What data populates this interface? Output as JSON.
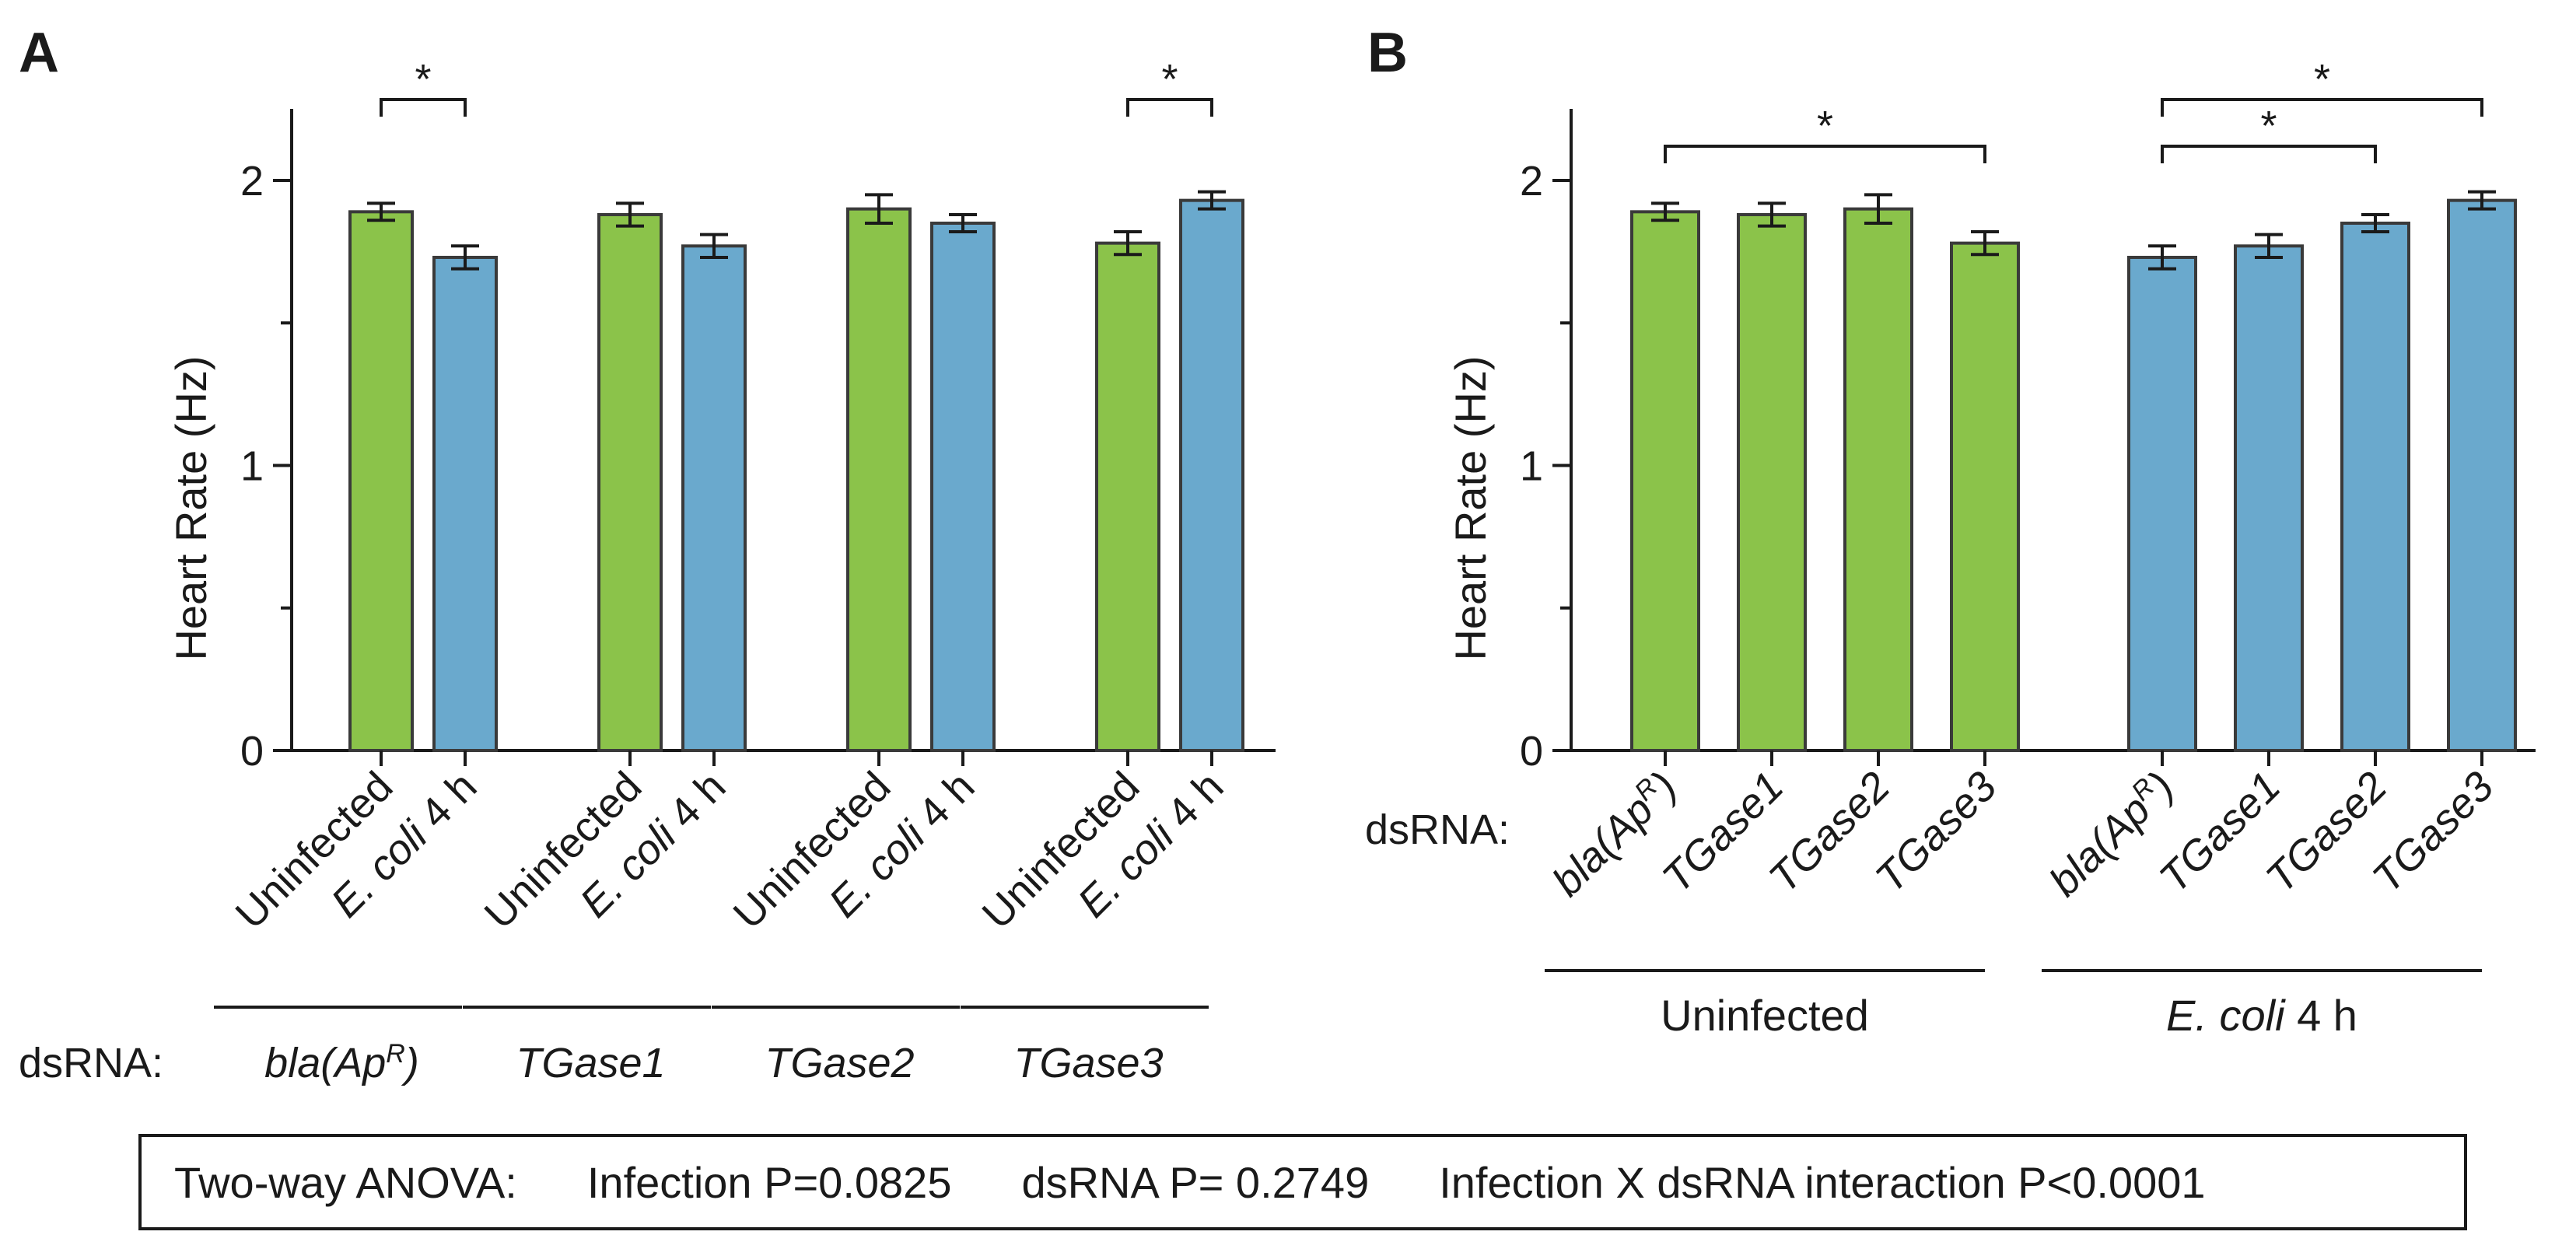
{
  "colors": {
    "uninfected": "#8BC34A",
    "infected": "#6AA9CD",
    "stroke": "#3a3a3a",
    "text": "#1a1a1a"
  },
  "dsrna_label": "dsRNA:",
  "chart_data": [
    {
      "panel": "A",
      "type": "bar",
      "ylabel": "Heart Rate (Hz)",
      "ylim": [
        0,
        2.25
      ],
      "yticks": [
        0,
        1,
        2
      ],
      "minor_yticks": [
        0.5,
        1.5
      ],
      "bars": [
        {
          "label": "Uninfected",
          "italic_part": "",
          "condition": "uninfected",
          "dsrna": "bla(ApR)",
          "value": 1.89,
          "err": 0.03
        },
        {
          "label": " 4 h",
          "italic_part": "E. coli",
          "condition": "infected",
          "dsrna": "bla(ApR)",
          "value": 1.73,
          "err": 0.04
        },
        {
          "label": "Uninfected",
          "italic_part": "",
          "condition": "uninfected",
          "dsrna": "TGase1",
          "value": 1.88,
          "err": 0.04
        },
        {
          "label": " 4 h",
          "italic_part": "E. coli",
          "condition": "infected",
          "dsrna": "TGase1",
          "value": 1.77,
          "err": 0.04
        },
        {
          "label": "Uninfected",
          "italic_part": "",
          "condition": "uninfected",
          "dsrna": "TGase2",
          "value": 1.9,
          "err": 0.05
        },
        {
          "label": " 4 h",
          "italic_part": "E. coli",
          "condition": "infected",
          "dsrna": "TGase2",
          "value": 1.85,
          "err": 0.03
        },
        {
          "label": "Uninfected",
          "italic_part": "",
          "condition": "uninfected",
          "dsrna": "TGase3",
          "value": 1.78,
          "err": 0.04
        },
        {
          "label": " 4 h",
          "italic_part": "E. coli",
          "condition": "infected",
          "dsrna": "TGase3",
          "value": 1.93,
          "err": 0.03
        }
      ],
      "groups": [
        {
          "label": "bla(Ap",
          "sup": "R",
          "close": ")",
          "bars": [
            0,
            1
          ]
        },
        {
          "label": "TGase1",
          "sup": "",
          "close": "",
          "bars": [
            2,
            3
          ]
        },
        {
          "label": "TGase2",
          "sup": "",
          "close": "",
          "bars": [
            4,
            5
          ]
        },
        {
          "label": "TGase3",
          "sup": "",
          "close": "",
          "bars": [
            6,
            7
          ]
        }
      ],
      "significance": [
        {
          "from": 0,
          "to": 1,
          "label": "*"
        },
        {
          "from": 6,
          "to": 7,
          "label": "*"
        }
      ]
    },
    {
      "panel": "B",
      "type": "bar",
      "ylabel": "Heart Rate (Hz)",
      "ylim": [
        0,
        2.25
      ],
      "yticks": [
        0,
        1,
        2
      ],
      "minor_yticks": [
        0.5,
        1.5
      ],
      "bars": [
        {
          "label": "bla(Ap",
          "sup": "R",
          "close": ")",
          "condition": "uninfected",
          "value": 1.89,
          "err": 0.03
        },
        {
          "label": "TGase1",
          "sup": "",
          "close": "",
          "condition": "uninfected",
          "value": 1.88,
          "err": 0.04
        },
        {
          "label": "TGase2",
          "sup": "",
          "close": "",
          "condition": "uninfected",
          "value": 1.9,
          "err": 0.05
        },
        {
          "label": "TGase3",
          "sup": "",
          "close": "",
          "condition": "uninfected",
          "value": 1.78,
          "err": 0.04
        },
        {
          "label": "bla(Ap",
          "sup": "R",
          "close": ")",
          "condition": "infected",
          "value": 1.73,
          "err": 0.04
        },
        {
          "label": "TGase1",
          "sup": "",
          "close": "",
          "condition": "infected",
          "value": 1.77,
          "err": 0.04
        },
        {
          "label": "TGase2",
          "sup": "",
          "close": "",
          "condition": "infected",
          "value": 1.85,
          "err": 0.03
        },
        {
          "label": "TGase3",
          "sup": "",
          "close": "",
          "condition": "infected",
          "value": 1.93,
          "err": 0.03
        }
      ],
      "groups": [
        {
          "label": "Uninfected",
          "italic_part": "",
          "bars": [
            0,
            1,
            2,
            3
          ]
        },
        {
          "label": " 4 h",
          "italic_part": "E. coli",
          "bars": [
            4,
            5,
            6,
            7
          ]
        }
      ],
      "significance": [
        {
          "from": 0,
          "to": 3,
          "label": "*",
          "level": 1
        },
        {
          "from": 4,
          "to": 6,
          "label": "*",
          "level": 1
        },
        {
          "from": 4,
          "to": 7,
          "label": "*",
          "level": 2
        }
      ]
    }
  ],
  "anova": {
    "title": "Two-way ANOVA:",
    "infection": "Infection P=0.0825",
    "dsrna": "dsRNA P= 0.2749",
    "interaction": "Infection X dsRNA interaction P<0.0001"
  }
}
